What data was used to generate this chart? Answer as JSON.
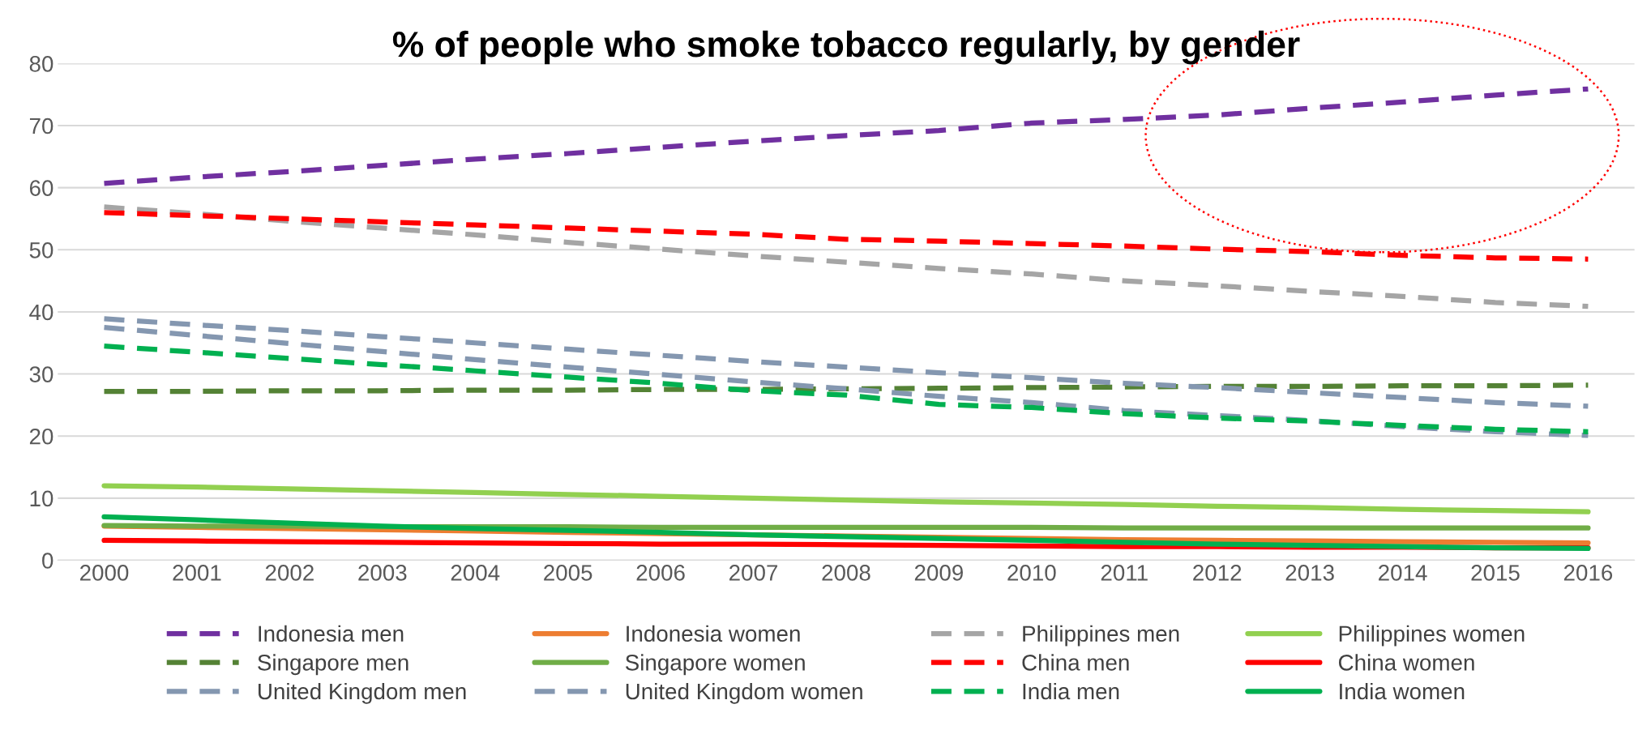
{
  "chart_data": {
    "type": "line",
    "title": "% of people who smoke tobacco regularly, by gender",
    "categories": [
      "2000",
      "2001",
      "2002",
      "2003",
      "2004",
      "2005",
      "2006",
      "2007",
      "2008",
      "2009",
      "2010",
      "2011",
      "2012",
      "2013",
      "2014",
      "2015",
      "2016"
    ],
    "ylim": [
      0,
      80
    ],
    "yticks": [
      0,
      10,
      20,
      30,
      40,
      50,
      60,
      70,
      80
    ],
    "grid": "y",
    "legend": "bottom",
    "marker": "none",
    "series": [
      {
        "name": "Indonesia men",
        "color": "#7030a0",
        "line_style": "dashed",
        "values": [
          60.7,
          61.7,
          62.6,
          63.6,
          64.6,
          65.5,
          66.5,
          67.5,
          68.4,
          69.2,
          70.4,
          71.0,
          71.7,
          72.8,
          73.8,
          74.9,
          75.9
        ]
      },
      {
        "name": "Indonesia women",
        "color": "#ed7d31",
        "line_style": "solid",
        "values": [
          5.5,
          5.3,
          5.1,
          4.9,
          4.7,
          4.5,
          4.3,
          4.1,
          3.9,
          3.7,
          3.5,
          3.3,
          3.2,
          3.1,
          3.0,
          2.9,
          2.8
        ]
      },
      {
        "name": "Philippines men",
        "color": "#a5a5a5",
        "line_style": "dashed",
        "values": [
          56.9,
          55.8,
          54.6,
          53.5,
          52.4,
          51.2,
          50.1,
          49.0,
          48.0,
          47.0,
          46.1,
          45.0,
          44.2,
          43.3,
          42.5,
          41.5,
          40.9
        ]
      },
      {
        "name": "Philippines women",
        "color": "#92d050",
        "line_style": "solid",
        "values": [
          12.0,
          11.8,
          11.5,
          11.2,
          10.9,
          10.6,
          10.3,
          10.0,
          9.7,
          9.4,
          9.2,
          9.0,
          8.7,
          8.5,
          8.2,
          8.0,
          7.8
        ]
      },
      {
        "name": "Singapore men",
        "color": "#548235",
        "line_style": "dashed",
        "values": [
          27.2,
          27.2,
          27.3,
          27.3,
          27.4,
          27.4,
          27.5,
          27.5,
          27.6,
          27.7,
          27.8,
          27.9,
          28.0,
          28.0,
          28.1,
          28.1,
          28.2
        ]
      },
      {
        "name": "Singapore women",
        "color": "#70ad47",
        "line_style": "solid",
        "values": [
          5.6,
          5.5,
          5.5,
          5.4,
          5.4,
          5.4,
          5.3,
          5.3,
          5.3,
          5.3,
          5.3,
          5.2,
          5.2,
          5.2,
          5.2,
          5.2,
          5.2
        ]
      },
      {
        "name": "China men",
        "color": "#ff0000",
        "line_style": "dashed",
        "values": [
          56.0,
          55.5,
          55.0,
          54.5,
          54.0,
          53.5,
          53.0,
          52.5,
          51.7,
          51.4,
          51.0,
          50.6,
          50.1,
          49.7,
          49.1,
          48.7,
          48.5
        ]
      },
      {
        "name": "China women",
        "color": "#ff0000",
        "line_style": "solid",
        "values": [
          3.2,
          3.1,
          3.0,
          2.9,
          2.8,
          2.7,
          2.6,
          2.6,
          2.5,
          2.4,
          2.3,
          2.2,
          2.2,
          2.1,
          2.1,
          2.0,
          2.0
        ]
      },
      {
        "name": "United Kingdom men",
        "color": "#8497b0",
        "line_style": "dashed",
        "values": [
          38.9,
          37.9,
          37.0,
          36.0,
          35.0,
          34.0,
          33.0,
          32.0,
          31.1,
          30.2,
          29.4,
          28.5,
          27.8,
          27.0,
          26.2,
          25.4,
          24.8
        ]
      },
      {
        "name": "United Kingdom women",
        "color": "#8497b0",
        "line_style": "dashed",
        "values": [
          37.5,
          36.2,
          34.9,
          33.6,
          32.3,
          31.1,
          29.9,
          28.7,
          27.6,
          26.4,
          25.4,
          24.1,
          23.3,
          22.5,
          21.5,
          20.7,
          20.1
        ]
      },
      {
        "name": "India men",
        "color": "#00b050",
        "line_style": "dashed",
        "values": [
          34.5,
          33.5,
          32.5,
          31.5,
          30.5,
          29.5,
          28.5,
          27.3,
          26.6,
          25.1,
          24.6,
          23.6,
          22.9,
          22.4,
          21.7,
          21.1,
          20.7
        ]
      },
      {
        "name": "India women",
        "color": "#00b050",
        "line_style": "solid",
        "values": [
          7.0,
          6.5,
          6.0,
          5.5,
          5.1,
          4.8,
          4.5,
          4.1,
          3.8,
          3.5,
          3.2,
          2.9,
          2.6,
          2.4,
          2.2,
          2.0,
          1.9
        ]
      }
    ]
  }
}
